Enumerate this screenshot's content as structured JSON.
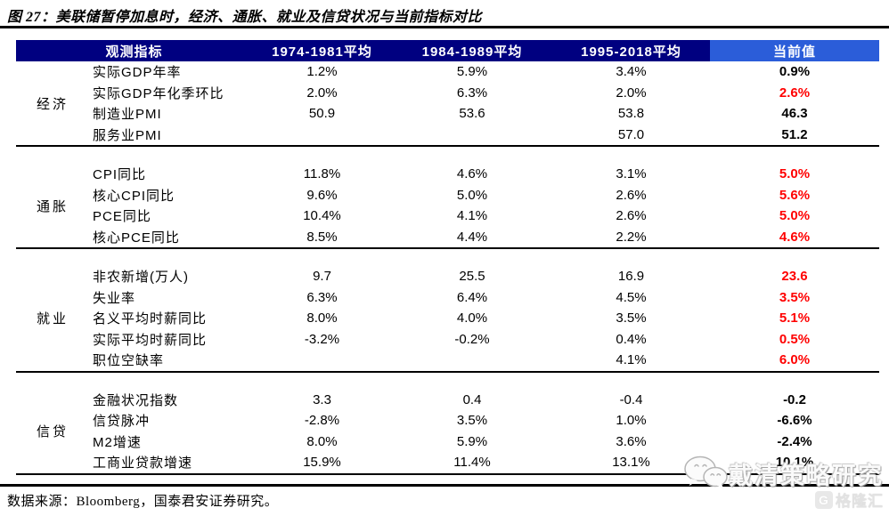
{
  "figure": {
    "title": "图 27：美联储暂停加息时，经济、通胀、就业及信贷状况与当前指标对比",
    "source": "数据来源：Bloomberg，国泰君安证券研究。"
  },
  "colors": {
    "header_bg": "#000080",
    "current_header_bg": "#2B5DD9",
    "highlight_red": "#FF0000",
    "text": "#000000"
  },
  "table": {
    "headers": [
      "观测指标",
      "1974-1981平均",
      "1984-1989平均",
      "1995-2018平均",
      "当前值"
    ],
    "sections": [
      {
        "category": "经济",
        "rows": [
          {
            "label": "实际GDP年率",
            "v1": "1.2%",
            "v2": "5.9%",
            "v3": "3.4%",
            "current": "0.9%",
            "current_color": "black"
          },
          {
            "label": "实际GDP年化季环比",
            "v1": "2.0%",
            "v2": "6.3%",
            "v3": "2.0%",
            "current": "2.6%",
            "current_color": "red"
          },
          {
            "label": "制造业PMI",
            "v1": "50.9",
            "v2": "53.6",
            "v3": "53.8",
            "current": "46.3",
            "current_color": "black"
          },
          {
            "label": "服务业PMI",
            "v1": "",
            "v2": "",
            "v3": "57.0",
            "current": "51.2",
            "current_color": "black"
          }
        ]
      },
      {
        "category": "通胀",
        "rows": [
          {
            "label": "CPI同比",
            "v1": "11.8%",
            "v2": "4.6%",
            "v3": "3.1%",
            "current": "5.0%",
            "current_color": "red"
          },
          {
            "label": "核心CPI同比",
            "v1": "9.6%",
            "v2": "5.0%",
            "v3": "2.6%",
            "current": "5.6%",
            "current_color": "red"
          },
          {
            "label": "PCE同比",
            "v1": "10.4%",
            "v2": "4.1%",
            "v3": "2.6%",
            "current": "5.0%",
            "current_color": "red"
          },
          {
            "label": "核心PCE同比",
            "v1": "8.5%",
            "v2": "4.4%",
            "v3": "2.2%",
            "current": "4.6%",
            "current_color": "red"
          }
        ]
      },
      {
        "category": "就业",
        "rows": [
          {
            "label": "非农新增(万人)",
            "v1": "9.7",
            "v2": "25.5",
            "v3": "16.9",
            "current": "23.6",
            "current_color": "red"
          },
          {
            "label": "失业率",
            "v1": "6.3%",
            "v2": "6.4%",
            "v3": "4.5%",
            "current": "3.5%",
            "current_color": "red"
          },
          {
            "label": "名义平均时薪同比",
            "v1": "8.0%",
            "v2": "4.0%",
            "v3": "3.5%",
            "current": "5.1%",
            "current_color": "red"
          },
          {
            "label": "实际平均时薪同比",
            "v1": "-3.2%",
            "v2": "-0.2%",
            "v3": "0.4%",
            "current": "0.5%",
            "current_color": "red"
          },
          {
            "label": "职位空缺率",
            "v1": "",
            "v2": "",
            "v3": "4.1%",
            "current": "6.0%",
            "current_color": "red"
          }
        ]
      },
      {
        "category": "信贷",
        "rows": [
          {
            "label": "金融状况指数",
            "v1": "3.3",
            "v2": "0.4",
            "v3": "-0.4",
            "current": "-0.2",
            "current_color": "black"
          },
          {
            "label": "信贷脉冲",
            "v1": "-2.8%",
            "v2": "3.5%",
            "v3": "1.0%",
            "current": "-6.6%",
            "current_color": "black"
          },
          {
            "label": "M2增速",
            "v1": "8.0%",
            "v2": "5.9%",
            "v3": "3.6%",
            "current": "-2.4%",
            "current_color": "black"
          },
          {
            "label": "工商业贷款增速",
            "v1": "15.9%",
            "v2": "11.4%",
            "v3": "13.1%",
            "current": "10.1%",
            "current_color": "black"
          }
        ]
      }
    ]
  },
  "watermark": {
    "text": "戴清策略研究",
    "logo_text": "格隆汇",
    "logo_letter": "G"
  }
}
